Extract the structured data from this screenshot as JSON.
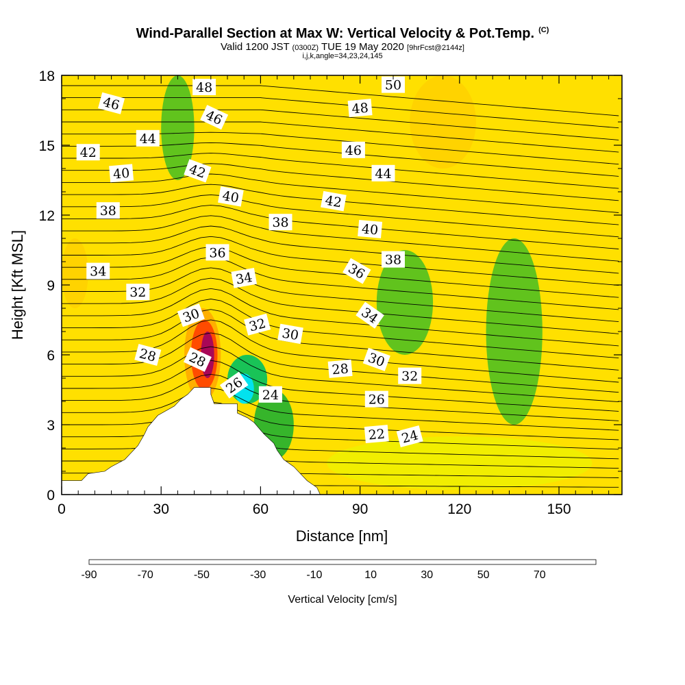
{
  "chart_data": {
    "type": "heatmap",
    "title": "Wind-Parallel Section at Max W: Vertical Velocity & Pot.Temp.",
    "title_unit": "(C)",
    "subtitle_main": "Valid 1200 JST",
    "subtitle_z": "(0300Z)",
    "subtitle_date": "TUE 19 May 2020",
    "subtitle_fcst": "[9hrFcst@2144z]",
    "subtitle2": "i,j,k,angle=34,23,24,145",
    "xlabel": "Distance [nm]",
    "ylabel": "Height [Kft MSL]",
    "xlim": [
      0,
      169
    ],
    "ylim": [
      0,
      18
    ],
    "xticks": [
      0,
      30,
      60,
      90,
      120,
      150
    ],
    "xtick_labels": [
      "0",
      "30",
      "60",
      "90",
      "120",
      "150"
    ],
    "yticks": [
      0,
      3,
      6,
      9,
      12,
      15,
      18
    ],
    "ytick_labels": [
      "0",
      "3",
      "6",
      "9",
      "12",
      "15",
      "18"
    ],
    "colorbar": {
      "label": "Vertical Velocity [cm/s]",
      "min": -90,
      "step": 10,
      "colors": [
        "#0000ff",
        "#0a5aff",
        "#00a0ff",
        "#00e6ff",
        "#00d2a0",
        "#00c060",
        "#20b030",
        "#50c020",
        "#a0dc20",
        "#f0f000",
        "#ffd200",
        "#ffaa00",
        "#ff7800",
        "#ff4000",
        "#e60000",
        "#c80030",
        "#a00060",
        "#780090"
      ],
      "tick_values": [
        -90,
        -70,
        -50,
        -30,
        -10,
        10,
        30,
        50,
        70
      ],
      "tick_labels": [
        "-90",
        "-70",
        "-50",
        "-30",
        "-10",
        "10",
        "30",
        "50",
        "70"
      ]
    },
    "terrain_profile": [
      [
        0,
        0.6
      ],
      [
        6,
        0.6
      ],
      [
        6,
        0.6
      ],
      [
        8,
        0.9
      ],
      [
        13,
        1.0
      ],
      [
        15,
        1.2
      ],
      [
        19,
        1.5
      ],
      [
        21,
        1.8
      ],
      [
        23,
        2.1
      ],
      [
        25,
        2.6
      ],
      [
        26,
        2.9
      ],
      [
        29,
        3.4
      ],
      [
        34,
        3.8
      ],
      [
        36,
        4.1
      ],
      [
        38,
        4.3
      ],
      [
        40,
        4.6
      ],
      [
        45,
        4.6
      ],
      [
        45,
        4.3
      ],
      [
        46,
        3.9
      ],
      [
        53,
        3.9
      ],
      [
        53,
        3.5
      ],
      [
        56,
        3.3
      ],
      [
        58,
        3.1
      ],
      [
        61,
        2.6
      ],
      [
        64,
        2.2
      ],
      [
        65,
        1.9
      ],
      [
        67,
        1.5
      ],
      [
        70,
        1.2
      ],
      [
        72,
        0.9
      ],
      [
        74,
        0.6
      ],
      [
        77,
        0.3
      ],
      [
        78,
        0
      ]
    ],
    "velocity_cells": [
      {
        "x": [
          42,
          46
        ],
        "y": [
          5.0,
          7.0
        ],
        "w": 75
      },
      {
        "x": [
          39,
          47
        ],
        "y": [
          4.5,
          7.5
        ],
        "w": 45
      },
      {
        "x": [
          37,
          48
        ],
        "y": [
          4.0,
          8.0
        ],
        "w": 25
      },
      {
        "x": [
          52,
          58
        ],
        "y": [
          3.9,
          5.2
        ],
        "w": -55
      },
      {
        "x": [
          50,
          62
        ],
        "y": [
          3.9,
          6.0
        ],
        "w": -35
      },
      {
        "x": [
          58,
          70
        ],
        "y": [
          1.5,
          4.5
        ],
        "w": -25
      },
      {
        "x": [
          30,
          40
        ],
        "y": [
          13.5,
          18
        ],
        "w": -15
      },
      {
        "x": [
          95,
          112
        ],
        "y": [
          6.0,
          10.5
        ],
        "w": -12
      },
      {
        "x": [
          128,
          145
        ],
        "y": [
          3.0,
          11.0
        ],
        "w": -12
      },
      {
        "x": [
          105,
          125
        ],
        "y": [
          14.0,
          18.0
        ],
        "w": 12
      },
      {
        "x": [
          0,
          8
        ],
        "y": [
          8.0,
          11.0
        ],
        "w": 18
      },
      {
        "x": [
          80,
          160
        ],
        "y": [
          0.2,
          2.5
        ],
        "w": 8
      }
    ],
    "contour_labels": [
      {
        "text": "48",
        "x": 43,
        "y": 17.5,
        "angle": 0
      },
      {
        "text": "50",
        "x": 100,
        "y": 17.6,
        "angle": 0
      },
      {
        "text": "46",
        "x": 15,
        "y": 16.8,
        "angle": 15
      },
      {
        "text": "46",
        "x": 46,
        "y": 16.2,
        "angle": 25
      },
      {
        "text": "48",
        "x": 90,
        "y": 16.6,
        "angle": -5
      },
      {
        "text": "44",
        "x": 26,
        "y": 15.3,
        "angle": 0
      },
      {
        "text": "42",
        "x": 8,
        "y": 14.7,
        "angle": 0
      },
      {
        "text": "42",
        "x": 41,
        "y": 13.9,
        "angle": 20
      },
      {
        "text": "46",
        "x": 88,
        "y": 14.8,
        "angle": 0
      },
      {
        "text": "40",
        "x": 18,
        "y": 13.8,
        "angle": -5
      },
      {
        "text": "44",
        "x": 97,
        "y": 13.8,
        "angle": 0
      },
      {
        "text": "40",
        "x": 51,
        "y": 12.8,
        "angle": 10
      },
      {
        "text": "42",
        "x": 82,
        "y": 12.6,
        "angle": 10
      },
      {
        "text": "38",
        "x": 14,
        "y": 12.2,
        "angle": 0
      },
      {
        "text": "38",
        "x": 66,
        "y": 11.7,
        "angle": 0
      },
      {
        "text": "40",
        "x": 93,
        "y": 11.4,
        "angle": 5
      },
      {
        "text": "36",
        "x": 47,
        "y": 10.4,
        "angle": 0
      },
      {
        "text": "38",
        "x": 100,
        "y": 10.1,
        "angle": 0
      },
      {
        "text": "34",
        "x": 11,
        "y": 9.6,
        "angle": 0
      },
      {
        "text": "34",
        "x": 55,
        "y": 9.3,
        "angle": -10
      },
      {
        "text": "36",
        "x": 89,
        "y": 9.6,
        "angle": 30
      },
      {
        "text": "32",
        "x": 23,
        "y": 8.7,
        "angle": 0
      },
      {
        "text": "30",
        "x": 39,
        "y": 7.7,
        "angle": -20
      },
      {
        "text": "32",
        "x": 59,
        "y": 7.3,
        "angle": -15
      },
      {
        "text": "34",
        "x": 93,
        "y": 7.7,
        "angle": 35
      },
      {
        "text": "30",
        "x": 69,
        "y": 6.9,
        "angle": 10
      },
      {
        "text": "28",
        "x": 26,
        "y": 6.0,
        "angle": 15
      },
      {
        "text": "28",
        "x": 41,
        "y": 5.8,
        "angle": 25
      },
      {
        "text": "30",
        "x": 95,
        "y": 5.8,
        "angle": 20
      },
      {
        "text": "28",
        "x": 84,
        "y": 5.4,
        "angle": -5
      },
      {
        "text": "32",
        "x": 105,
        "y": 5.1,
        "angle": 0
      },
      {
        "text": "26",
        "x": 52,
        "y": 4.7,
        "angle": -35
      },
      {
        "text": "24",
        "x": 63,
        "y": 4.3,
        "angle": 0
      },
      {
        "text": "26",
        "x": 95,
        "y": 4.1,
        "angle": 0
      },
      {
        "text": "22",
        "x": 95,
        "y": 2.6,
        "angle": -5
      },
      {
        "text": "24",
        "x": 105,
        "y": 2.5,
        "angle": -15
      }
    ]
  }
}
